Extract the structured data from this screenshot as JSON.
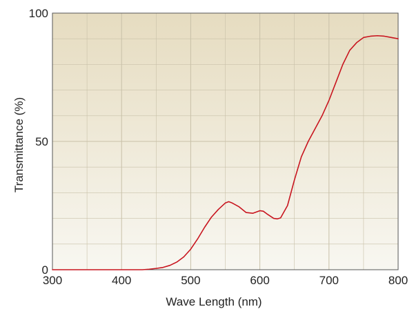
{
  "chart_data": {
    "type": "line",
    "title": "",
    "xlabel": "Wave Length (nm)",
    "ylabel": "Transmittance (%)",
    "xlim": [
      300,
      800
    ],
    "ylim": [
      0,
      100
    ],
    "x_ticks": [
      300,
      400,
      500,
      600,
      700,
      800
    ],
    "y_ticks": [
      0,
      50,
      100
    ],
    "x_tick_labels": [
      "300",
      "400",
      "500",
      "600",
      "700",
      "800"
    ],
    "y_tick_labels": [
      "0",
      "50",
      "100"
    ],
    "grid": true,
    "x_minor_step": 50,
    "y_minor_step": 10,
    "background_top_color": "#e6dcc0",
    "background_bottom_color": "#f8f7f1",
    "grid_color": "#c8c0a8",
    "line_color": "#c8141e",
    "series": [
      {
        "name": "",
        "x": [
          300,
          400,
          430,
          440,
          450,
          460,
          470,
          480,
          490,
          500,
          510,
          520,
          530,
          540,
          550,
          555,
          560,
          570,
          580,
          590,
          600,
          605,
          610,
          620,
          625,
          630,
          640,
          650,
          660,
          670,
          680,
          690,
          700,
          710,
          720,
          730,
          740,
          750,
          760,
          770,
          780,
          790,
          800
        ],
        "y": [
          0,
          0,
          0,
          0.2,
          0.5,
          0.9,
          1.7,
          3,
          5,
          8,
          12,
          16.5,
          20.5,
          23.5,
          26,
          26.5,
          26,
          24.5,
          22.3,
          22,
          23,
          22.8,
          21.8,
          20,
          19.8,
          20.2,
          25,
          35,
          44,
          50,
          55,
          60,
          66,
          73,
          80,
          85.5,
          88.5,
          90.5,
          91,
          91.2,
          91,
          90.5,
          90
        ]
      }
    ]
  }
}
